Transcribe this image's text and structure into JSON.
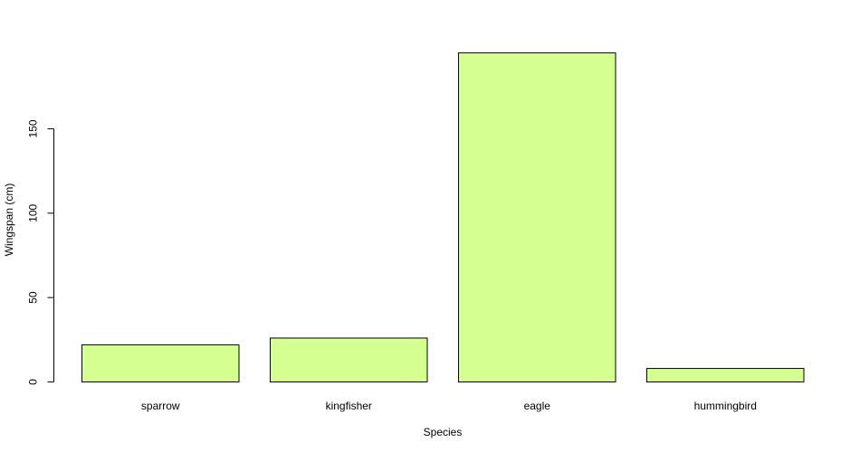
{
  "chart_data": {
    "type": "bar",
    "categories": [
      "sparrow",
      "kingfisher",
      "eagle",
      "hummingbird"
    ],
    "values": [
      22,
      26,
      195,
      8
    ],
    "xlabel": "Species",
    "ylabel": "Wingspan (cm)",
    "yticks": [
      0,
      50,
      100,
      150
    ],
    "ylim": [
      0,
      195
    ],
    "grid": false,
    "bar_color": "#d5ff91",
    "bar_border_color": "#000000"
  }
}
